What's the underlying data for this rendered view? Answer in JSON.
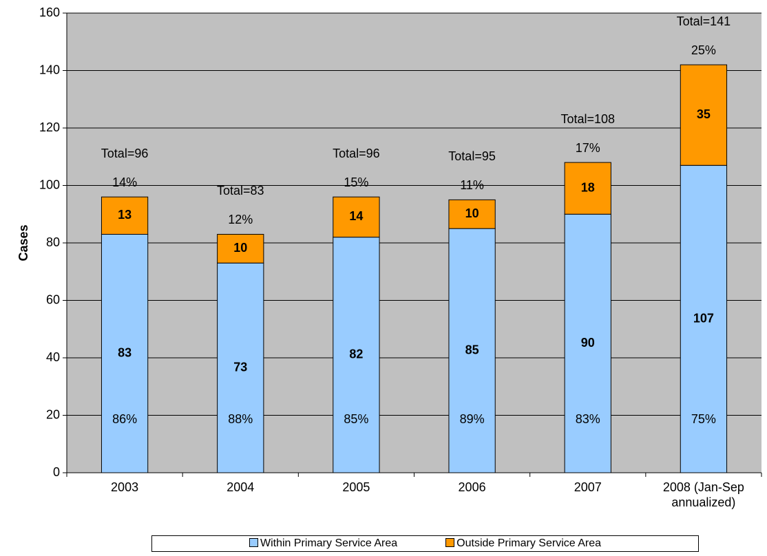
{
  "chart_data": {
    "type": "stacked_bar",
    "y_label": "Cases",
    "categories": [
      "2003",
      "2004",
      "2005",
      "2006",
      "2007",
      "2008 (Jan-Sep annualized)"
    ],
    "series": [
      {
        "name": "Within Primary Service Area",
        "color": "#99ccff",
        "values": [
          83,
          73,
          82,
          85,
          90,
          107
        ]
      },
      {
        "name": "Outside Primary Service Area",
        "color": "#ff9900",
        "values": [
          13,
          10,
          14,
          10,
          18,
          35
        ]
      }
    ],
    "annotations": {
      "totals": [
        "Total=96",
        "Total=83",
        "Total=96",
        "Total=95",
        "Total=108",
        "Total=141"
      ],
      "outside_percents": [
        "14%",
        "12%",
        "15%",
        "11%",
        "17%",
        "25%"
      ],
      "within_percents": [
        "86%",
        "88%",
        "85%",
        "89%",
        "83%",
        "75%"
      ]
    },
    "ylim": [
      0,
      160
    ],
    "yticks": [
      0,
      20,
      40,
      60,
      80,
      100,
      120,
      140,
      160
    ],
    "grid": true,
    "legend": "bottom"
  }
}
